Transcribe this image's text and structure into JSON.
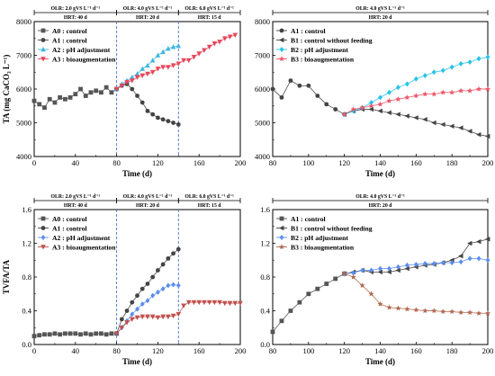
{
  "chart_data": [
    {
      "type": "line",
      "ylabel": "TA (mg CaCO₃ L⁻¹)",
      "xlabel": "Time (d)",
      "xlim": [
        0,
        200
      ],
      "ylim": [
        4000,
        8000
      ],
      "xticks": [
        0,
        40,
        80,
        120,
        160,
        200
      ],
      "yticks": [
        4000,
        5000,
        6000,
        7000,
        8000
      ],
      "periods": [
        {
          "olr": "OLR:  2.0 gVS L⁻¹ d⁻¹",
          "hrt": "HRT: 40 d",
          "x0": 0,
          "x1": 80
        },
        {
          "olr": "OLR:  4.0 gVS L⁻¹ d⁻¹",
          "hrt": "HRT: 20 d",
          "x0": 80,
          "x1": 140
        },
        {
          "olr": "OLR:  6.0 gVS L⁻¹ d⁻¹",
          "hrt": "HRT: 15 d",
          "x0": 140,
          "x1": 200
        }
      ],
      "vlines": [
        80,
        140
      ],
      "legend_position": "top-left",
      "series": [
        {
          "name": "A0 : control",
          "color": "#555555",
          "marker": "square",
          "x": [
            0,
            5,
            10,
            15,
            20,
            25,
            30,
            35,
            40,
            45,
            50,
            55,
            60,
            65,
            70,
            75,
            80
          ],
          "y": [
            5650,
            5550,
            5450,
            5700,
            5600,
            5750,
            5700,
            5750,
            5850,
            6000,
            5800,
            5900,
            5950,
            5900,
            6050,
            5900,
            6000
          ]
        },
        {
          "name": "A1 : control",
          "color": "#444444",
          "marker": "circle",
          "x": [
            80,
            85,
            90,
            95,
            100,
            105,
            110,
            115,
            120,
            125,
            130,
            135,
            140
          ],
          "y": [
            6000,
            6100,
            6150,
            6000,
            5800,
            5600,
            5350,
            5250,
            5150,
            5100,
            5050,
            5000,
            4950
          ]
        },
        {
          "name": "A2 : pH adjustment",
          "color": "#3fb7e0",
          "marker": "triangle-up",
          "x": [
            80,
            85,
            90,
            95,
            100,
            105,
            110,
            115,
            120,
            125,
            130,
            135,
            140
          ],
          "y": [
            6000,
            6150,
            6250,
            6350,
            6450,
            6600,
            6700,
            6850,
            7000,
            7100,
            7200,
            7250,
            7280
          ]
        },
        {
          "name": "A3 : bioaugmentation",
          "color": "#e8455a",
          "marker": "triangle-down",
          "x": [
            80,
            85,
            90,
            95,
            100,
            105,
            110,
            115,
            120,
            125,
            130,
            135,
            140,
            145,
            150,
            155,
            160,
            165,
            170,
            175,
            180,
            185,
            190,
            195
          ],
          "y": [
            6000,
            6100,
            6200,
            6250,
            6350,
            6400,
            6450,
            6500,
            6600,
            6650,
            6650,
            6700,
            6750,
            6850,
            6850,
            6950,
            7050,
            7150,
            7250,
            7350,
            7400,
            7500,
            7550,
            7600
          ]
        }
      ]
    },
    {
      "type": "line",
      "ylabel": "",
      "xlabel": "Time (d)",
      "xlim": [
        80,
        200
      ],
      "ylim": [
        4000,
        8000
      ],
      "xticks": [
        80,
        100,
        120,
        140,
        160,
        180,
        200
      ],
      "yticks": [
        4000,
        5000,
        6000,
        7000,
        8000
      ],
      "periods": [
        {
          "olr": "OLR:  4.0 gVS L⁻¹ d⁻¹",
          "hrt": "HRT: 20 d",
          "x0": 80,
          "x1": 200
        }
      ],
      "vlines": [],
      "legend_position": "top-left",
      "series": [
        {
          "name": "A1 : control",
          "color": "#444444",
          "marker": "circle",
          "x": [
            80,
            85,
            90,
            95,
            100,
            105,
            110,
            115,
            120
          ],
          "y": [
            6000,
            5750,
            6250,
            6100,
            6100,
            5800,
            5550,
            5400,
            5250
          ]
        },
        {
          "name": "B1 : control without feeding",
          "color": "#444444",
          "marker": "triangle-left",
          "x": [
            120,
            125,
            130,
            135,
            140,
            145,
            150,
            155,
            160,
            165,
            170,
            175,
            180,
            185,
            190,
            195,
            200
          ],
          "y": [
            5250,
            5350,
            5400,
            5400,
            5350,
            5300,
            5250,
            5200,
            5150,
            5100,
            5000,
            4950,
            4900,
            4850,
            4750,
            4650,
            4600
          ]
        },
        {
          "name": "B2 : pH adjustment",
          "color": "#22c3e6",
          "marker": "diamond",
          "x": [
            120,
            125,
            130,
            135,
            140,
            145,
            150,
            155,
            160,
            165,
            170,
            175,
            180,
            185,
            190,
            195,
            200
          ],
          "y": [
            5250,
            5350,
            5450,
            5600,
            5750,
            5900,
            6050,
            6150,
            6300,
            6400,
            6500,
            6550,
            6650,
            6750,
            6800,
            6900,
            6950
          ]
        },
        {
          "name": "B3 : bioaugmentation",
          "color": "#ee5568",
          "marker": "star",
          "x": [
            120,
            125,
            130,
            135,
            140,
            145,
            150,
            155,
            160,
            165,
            170,
            175,
            180,
            185,
            190,
            195,
            200
          ],
          "y": [
            5250,
            5400,
            5450,
            5500,
            5550,
            5650,
            5700,
            5750,
            5800,
            5850,
            5850,
            5900,
            5900,
            5950,
            5950,
            6000,
            6000
          ]
        }
      ]
    },
    {
      "type": "line",
      "ylabel": "TVFA/TA",
      "xlabel": "Time (d)",
      "xlim": [
        0,
        200
      ],
      "ylim": [
        0,
        1.6
      ],
      "xticks": [
        0,
        40,
        80,
        120,
        160,
        200
      ],
      "yticks": [
        0.0,
        0.4,
        0.8,
        1.2,
        1.6
      ],
      "periods": [
        {
          "olr": "OLR:  2.0 gVS L⁻¹ d⁻¹",
          "hrt": "HRT: 40 d",
          "x0": 0,
          "x1": 80
        },
        {
          "olr": "OLR:  4.0 gVS L⁻¹ d⁻¹",
          "hrt": "HRT: 20 d",
          "x0": 80,
          "x1": 140
        },
        {
          "olr": "OLR:  6.0 gVS L⁻¹ d⁻¹",
          "hrt": "HRT: 15 d",
          "x0": 140,
          "x1": 200
        }
      ],
      "vlines": [
        80,
        140
      ],
      "legend_position": "top-left",
      "series": [
        {
          "name": "A0 : control",
          "color": "#555555",
          "marker": "square",
          "x": [
            0,
            5,
            10,
            15,
            20,
            25,
            30,
            35,
            40,
            45,
            50,
            55,
            60,
            65,
            70,
            75,
            80
          ],
          "y": [
            0.1,
            0.11,
            0.12,
            0.12,
            0.13,
            0.12,
            0.13,
            0.13,
            0.13,
            0.12,
            0.13,
            0.12,
            0.13,
            0.13,
            0.12,
            0.13,
            0.13
          ]
        },
        {
          "name": "A1 : control",
          "color": "#444444",
          "marker": "circle",
          "x": [
            80,
            85,
            90,
            95,
            100,
            105,
            110,
            115,
            120,
            125,
            130,
            135,
            140
          ],
          "y": [
            0.13,
            0.3,
            0.4,
            0.5,
            0.58,
            0.66,
            0.72,
            0.8,
            0.88,
            0.95,
            1.02,
            1.08,
            1.13
          ]
        },
        {
          "name": "A2 : pH adjustment",
          "color": "#5b8def",
          "marker": "diamond",
          "x": [
            80,
            85,
            90,
            95,
            100,
            105,
            110,
            115,
            120,
            125,
            130,
            135,
            140
          ],
          "y": [
            0.13,
            0.2,
            0.28,
            0.36,
            0.42,
            0.48,
            0.52,
            0.58,
            0.62,
            0.66,
            0.7,
            0.71,
            0.7
          ]
        },
        {
          "name": "A3 : bioaugmentation",
          "color": "#c0504d",
          "marker": "triangle-down",
          "x": [
            80,
            85,
            90,
            95,
            100,
            105,
            110,
            115,
            120,
            125,
            130,
            135,
            140,
            145,
            150,
            155,
            160,
            165,
            170,
            175,
            180,
            185,
            190,
            195,
            200
          ],
          "y": [
            0.13,
            0.2,
            0.26,
            0.3,
            0.32,
            0.33,
            0.33,
            0.33,
            0.32,
            0.33,
            0.33,
            0.34,
            0.36,
            0.46,
            0.5,
            0.5,
            0.5,
            0.5,
            0.5,
            0.5,
            0.5,
            0.49,
            0.49,
            0.49,
            0.49
          ]
        }
      ]
    },
    {
      "type": "line",
      "ylabel": "",
      "xlabel": "Time (d)",
      "xlim": [
        80,
        200
      ],
      "ylim": [
        0,
        1.6
      ],
      "xticks": [
        80,
        100,
        120,
        140,
        160,
        180,
        200
      ],
      "yticks": [
        0.0,
        0.4,
        0.8,
        1.2,
        1.6
      ],
      "periods": [
        {
          "olr": "OLR:  4.0 gVS L⁻¹ d⁻¹",
          "hrt": "HRT: 20 d",
          "x0": 80,
          "x1": 200
        }
      ],
      "vlines": [],
      "legend_position": "top-left",
      "series": [
        {
          "name": "A1 : control",
          "color": "#555555",
          "marker": "square",
          "x": [
            80,
            85,
            90,
            95,
            100,
            105,
            110,
            115,
            120
          ],
          "y": [
            0.15,
            0.28,
            0.4,
            0.5,
            0.6,
            0.66,
            0.72,
            0.78,
            0.84
          ]
        },
        {
          "name": "B1 : control without feeding",
          "color": "#444444",
          "marker": "triangle-left",
          "x": [
            120,
            125,
            130,
            135,
            140,
            145,
            150,
            155,
            160,
            165,
            170,
            175,
            180,
            185,
            190,
            195,
            200
          ],
          "y": [
            0.84,
            0.86,
            0.88,
            0.86,
            0.86,
            0.86,
            0.88,
            0.9,
            0.92,
            0.94,
            0.95,
            0.97,
            1.0,
            1.05,
            1.2,
            1.22,
            1.25
          ]
        },
        {
          "name": "B2 : pH adjustment",
          "color": "#5b8def",
          "marker": "diamond",
          "x": [
            120,
            125,
            130,
            135,
            140,
            145,
            150,
            155,
            160,
            165,
            170,
            175,
            180,
            185,
            190,
            195,
            200
          ],
          "y": [
            0.84,
            0.85,
            0.88,
            0.88,
            0.9,
            0.9,
            0.92,
            0.94,
            0.95,
            0.96,
            0.96,
            0.97,
            0.97,
            0.98,
            1.02,
            1.02,
            1.0
          ]
        },
        {
          "name": "B3 : bioaugmentation",
          "color": "#b06a50",
          "marker": "star",
          "x": [
            120,
            125,
            130,
            135,
            140,
            145,
            150,
            155,
            160,
            165,
            170,
            175,
            180,
            185,
            190,
            195,
            200
          ],
          "y": [
            0.84,
            0.8,
            0.7,
            0.6,
            0.48,
            0.44,
            0.43,
            0.42,
            0.41,
            0.4,
            0.4,
            0.39,
            0.39,
            0.38,
            0.38,
            0.37,
            0.37
          ]
        }
      ]
    }
  ]
}
